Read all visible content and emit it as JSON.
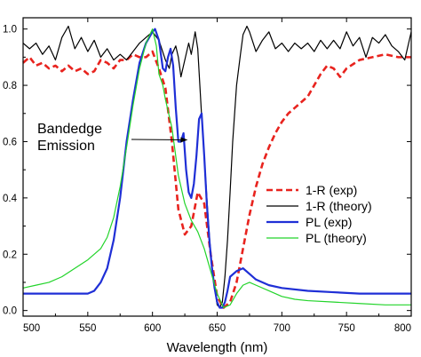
{
  "chart_data": {
    "type": "line",
    "xlabel": "Wavelength (nm)",
    "ylabel": "",
    "xlim": [
      500,
      800
    ],
    "ylim": [
      -0.02,
      1.04
    ],
    "x_ticks": [
      500,
      550,
      600,
      650,
      700,
      750,
      800
    ],
    "y_ticks": [
      0.0,
      0.2,
      0.4,
      0.6,
      0.8,
      1.0
    ],
    "y_tick_labels": [
      "0.0",
      "0.2",
      "0.4",
      "0.6",
      "0.8",
      "1.0"
    ],
    "grid": false,
    "legend_position": "center-right",
    "annotation": {
      "lines": [
        "Bandedge",
        "Emission"
      ],
      "arrow_to": [
        630,
        0.6
      ]
    },
    "series": [
      {
        "name": "1-R (exp)",
        "color": "#e8231e",
        "dash": "dashed",
        "x": [
          500,
          505,
          510,
          515,
          520,
          525,
          530,
          535,
          540,
          545,
          550,
          555,
          560,
          565,
          570,
          575,
          580,
          585,
          590,
          595,
          600,
          605,
          610,
          615,
          620,
          625,
          630,
          635,
          640,
          645,
          650,
          655,
          660,
          665,
          670,
          675,
          680,
          685,
          690,
          695,
          700,
          705,
          710,
          720,
          725,
          730,
          735,
          740,
          745,
          750,
          760,
          770,
          780,
          790,
          800
        ],
        "y": [
          0.88,
          0.9,
          0.87,
          0.88,
          0.86,
          0.87,
          0.85,
          0.87,
          0.85,
          0.86,
          0.84,
          0.85,
          0.89,
          0.88,
          0.86,
          0.89,
          0.89,
          0.91,
          0.9,
          0.9,
          0.92,
          0.86,
          0.79,
          0.6,
          0.36,
          0.27,
          0.3,
          0.42,
          0.38,
          0.2,
          0.05,
          0.01,
          0.03,
          0.1,
          0.22,
          0.34,
          0.44,
          0.52,
          0.58,
          0.63,
          0.67,
          0.7,
          0.72,
          0.76,
          0.8,
          0.84,
          0.87,
          0.86,
          0.83,
          0.86,
          0.89,
          0.9,
          0.91,
          0.9,
          0.9
        ]
      },
      {
        "name": "1-R (theory)",
        "color": "#000000",
        "dash": "solid",
        "x": [
          500,
          505,
          510,
          515,
          520,
          525,
          530,
          535,
          540,
          545,
          550,
          555,
          560,
          565,
          570,
          575,
          580,
          585,
          590,
          595,
          600,
          605,
          610,
          613,
          615,
          618,
          620,
          622,
          625,
          628,
          630,
          633,
          635,
          638,
          640,
          643,
          645,
          648,
          650,
          652,
          654,
          656,
          658,
          660,
          662,
          665,
          668,
          670,
          673,
          675,
          680,
          685,
          690,
          695,
          700,
          705,
          710,
          715,
          720,
          725,
          730,
          735,
          740,
          745,
          750,
          755,
          760,
          765,
          770,
          775,
          780,
          785,
          790,
          795,
          800
        ],
        "y": [
          0.95,
          0.93,
          0.95,
          0.91,
          0.94,
          0.89,
          0.97,
          1.01,
          0.93,
          0.97,
          0.92,
          0.96,
          0.9,
          0.93,
          0.89,
          0.91,
          0.89,
          0.92,
          0.95,
          0.97,
          0.99,
          0.96,
          0.89,
          0.86,
          0.91,
          0.94,
          0.9,
          0.83,
          0.89,
          0.95,
          0.91,
          0.99,
          0.93,
          0.69,
          0.55,
          0.33,
          0.2,
          0.08,
          0.02,
          0.01,
          0.03,
          0.12,
          0.25,
          0.42,
          0.6,
          0.8,
          0.91,
          0.98,
          1.01,
          0.99,
          0.92,
          0.96,
          0.99,
          0.93,
          0.95,
          0.92,
          0.95,
          0.93,
          0.95,
          0.92,
          0.96,
          0.93,
          0.96,
          0.93,
          0.99,
          0.94,
          0.97,
          0.9,
          0.97,
          0.95,
          0.98,
          0.94,
          0.92,
          0.89,
          0.99
        ]
      },
      {
        "name": "PL (exp)",
        "color": "#1f2fd6",
        "dash": "solid",
        "x": [
          500,
          510,
          520,
          530,
          540,
          550,
          555,
          560,
          565,
          570,
          575,
          580,
          585,
          590,
          595,
          600,
          602,
          605,
          608,
          610,
          612,
          614,
          616,
          618,
          620,
          622,
          624,
          626,
          628,
          630,
          632,
          634,
          636,
          638,
          640,
          642,
          644,
          646,
          648,
          650,
          652,
          654,
          656,
          658,
          660,
          665,
          670,
          675,
          680,
          690,
          700,
          720,
          740,
          760,
          780,
          800
        ],
        "y": [
          0.06,
          0.06,
          0.06,
          0.06,
          0.06,
          0.06,
          0.07,
          0.1,
          0.15,
          0.25,
          0.4,
          0.6,
          0.75,
          0.88,
          0.95,
          0.99,
          1.0,
          0.96,
          0.86,
          0.85,
          0.9,
          0.93,
          0.87,
          0.72,
          0.6,
          0.6,
          0.63,
          0.5,
          0.42,
          0.4,
          0.45,
          0.55,
          0.68,
          0.7,
          0.55,
          0.38,
          0.25,
          0.15,
          0.08,
          0.03,
          0.01,
          0.01,
          0.03,
          0.07,
          0.12,
          0.14,
          0.15,
          0.13,
          0.11,
          0.09,
          0.08,
          0.07,
          0.065,
          0.06,
          0.06,
          0.06
        ]
      },
      {
        "name": "PL (theory)",
        "color": "#22d42a",
        "dash": "solid",
        "x": [
          500,
          510,
          520,
          530,
          540,
          550,
          560,
          565,
          570,
          575,
          580,
          585,
          590,
          595,
          600,
          603,
          605,
          608,
          610,
          615,
          620,
          625,
          630,
          635,
          640,
          645,
          650,
          655,
          660,
          665,
          670,
          675,
          680,
          690,
          700,
          710,
          720,
          740,
          760,
          780,
          800
        ],
        "y": [
          0.08,
          0.09,
          0.1,
          0.12,
          0.15,
          0.18,
          0.22,
          0.26,
          0.33,
          0.44,
          0.58,
          0.73,
          0.86,
          0.95,
          1.0,
          0.94,
          0.84,
          0.8,
          0.75,
          0.65,
          0.48,
          0.38,
          0.32,
          0.28,
          0.22,
          0.14,
          0.06,
          0.01,
          0.02,
          0.06,
          0.09,
          0.1,
          0.09,
          0.07,
          0.05,
          0.04,
          0.035,
          0.03,
          0.025,
          0.02,
          0.02
        ]
      }
    ]
  }
}
